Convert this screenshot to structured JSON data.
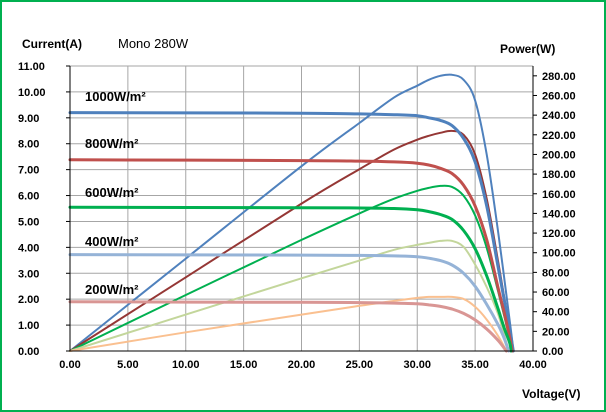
{
  "chart_data": {
    "type": "line",
    "title": "",
    "subtitle": "Mono 280W",
    "ylabel": "Current(A)",
    "y2label": "Power(W)",
    "xlabel": "Voltage(V)",
    "xlim": [
      0,
      40
    ],
    "ylim": [
      0,
      11
    ],
    "y2lim": [
      0,
      290
    ],
    "grid": true,
    "x_ticks": [
      "0.00",
      "5.00",
      "10.00",
      "15.00",
      "20.00",
      "25.00",
      "30.00",
      "35.00",
      "40.00"
    ],
    "y_ticks": [
      "0.00",
      "1.00",
      "2.00",
      "3.00",
      "4.00",
      "5.00",
      "6.00",
      "7.00",
      "8.00",
      "9.00",
      "10.00",
      "11.00"
    ],
    "y2_ticks": [
      "0.00",
      "20.00",
      "40.00",
      "60.00",
      "80.00",
      "100.00",
      "120.00",
      "140.00",
      "160.00",
      "180.00",
      "200.00",
      "220.00",
      "240.00",
      "260.00",
      "280.00"
    ],
    "irradiance_labels": [
      "1000W/m²",
      "800W/m²",
      "600W/m²",
      "400W/m²",
      "200W/m²"
    ],
    "series": [
      {
        "group": "1000W/m²",
        "kind": "current",
        "axis": "left",
        "color": "#4f81bd",
        "width": 3,
        "x": [
          0,
          20,
          25,
          28,
          30,
          31,
          32,
          33,
          34,
          35,
          36,
          37,
          37.5,
          38,
          38.3
        ],
        "y": [
          9.2,
          9.18,
          9.15,
          9.12,
          9.08,
          9.0,
          8.9,
          8.7,
          8.2,
          7.3,
          5.6,
          3.2,
          2.0,
          0.8,
          0
        ]
      },
      {
        "group": "800W/m²",
        "kind": "current",
        "axis": "left",
        "color": "#c0504d",
        "width": 3,
        "x": [
          0,
          20,
          25,
          28,
          30,
          31,
          32,
          33,
          34,
          35,
          36,
          37,
          37.5,
          38,
          38.2
        ],
        "y": [
          7.38,
          7.35,
          7.33,
          7.3,
          7.25,
          7.18,
          7.05,
          6.85,
          6.4,
          5.6,
          4.3,
          2.4,
          1.5,
          0.5,
          0
        ]
      },
      {
        "group": "600W/m²",
        "kind": "current",
        "axis": "left",
        "color": "#00b050",
        "width": 3,
        "x": [
          0,
          20,
          25,
          28,
          30,
          31,
          32,
          33,
          34,
          35,
          36,
          37,
          37.5,
          38,
          38.1
        ],
        "y": [
          5.55,
          5.53,
          5.52,
          5.5,
          5.45,
          5.38,
          5.27,
          5.08,
          4.65,
          3.95,
          2.9,
          1.6,
          0.9,
          0.3,
          0
        ]
      },
      {
        "group": "400W/m²",
        "kind": "current",
        "axis": "left",
        "color": "#95b3d7",
        "width": 3,
        "x": [
          0,
          20,
          25,
          28,
          30,
          31,
          32,
          33,
          34,
          35,
          36,
          37,
          37.5,
          37.9
        ],
        "y": [
          3.72,
          3.7,
          3.69,
          3.67,
          3.64,
          3.58,
          3.49,
          3.32,
          3.0,
          2.5,
          1.8,
          1.0,
          0.5,
          0
        ]
      },
      {
        "group": "200W/m²",
        "kind": "current",
        "axis": "left",
        "color": "#d99694",
        "width": 3,
        "x": [
          0,
          20,
          25,
          28,
          30,
          31,
          32,
          33,
          34,
          35,
          36,
          37,
          37.7
        ],
        "y": [
          1.9,
          1.88,
          1.87,
          1.85,
          1.82,
          1.78,
          1.72,
          1.62,
          1.45,
          1.2,
          0.85,
          0.4,
          0
        ]
      },
      {
        "group": "1000W/m²",
        "kind": "power",
        "axis": "right",
        "color": "#4f81bd",
        "width": 2,
        "x": [
          0,
          10,
          20,
          25,
          28,
          30,
          31,
          32,
          33,
          34,
          35,
          36,
          37,
          38,
          38.3
        ],
        "y": [
          0,
          94,
          188,
          232,
          258,
          270,
          276,
          280,
          281,
          276,
          255,
          200,
          120,
          30,
          0
        ]
      },
      {
        "group": "800W/m²",
        "kind": "power",
        "axis": "right",
        "color": "#953735",
        "width": 2,
        "x": [
          0,
          10,
          20,
          25,
          28,
          30,
          31,
          32,
          33,
          34,
          35,
          36,
          37,
          38,
          38.2
        ],
        "y": [
          0,
          75,
          150,
          185,
          205,
          215,
          219,
          222,
          224,
          220,
          200,
          155,
          90,
          20,
          0
        ]
      },
      {
        "group": "600W/m²",
        "kind": "power",
        "axis": "right",
        "color": "#00b050",
        "width": 2,
        "x": [
          0,
          10,
          20,
          25,
          28,
          30,
          31,
          32,
          33,
          34,
          35,
          36,
          37,
          38,
          38.1
        ],
        "y": [
          0,
          57,
          113,
          140,
          155,
          163,
          166,
          168,
          167,
          158,
          138,
          105,
          60,
          12,
          0
        ]
      },
      {
        "group": "400W/m²",
        "kind": "power",
        "axis": "right",
        "color": "#c3d69b",
        "width": 2,
        "x": [
          0,
          10,
          20,
          25,
          28,
          30,
          31,
          32,
          33,
          34,
          35,
          36,
          37,
          37.9
        ],
        "y": [
          0,
          37,
          74,
          92,
          103,
          108,
          110,
          112,
          112,
          106,
          88,
          65,
          37,
          0
        ]
      },
      {
        "group": "200W/m²",
        "kind": "power",
        "axis": "right",
        "color": "#fac090",
        "width": 2,
        "x": [
          0,
          10,
          20,
          25,
          28,
          30,
          31,
          32,
          33,
          34,
          35,
          36,
          37,
          37.7
        ],
        "y": [
          0,
          19,
          37,
          46,
          51,
          54,
          55,
          55,
          55,
          53,
          45,
          32,
          15,
          0
        ]
      }
    ]
  }
}
